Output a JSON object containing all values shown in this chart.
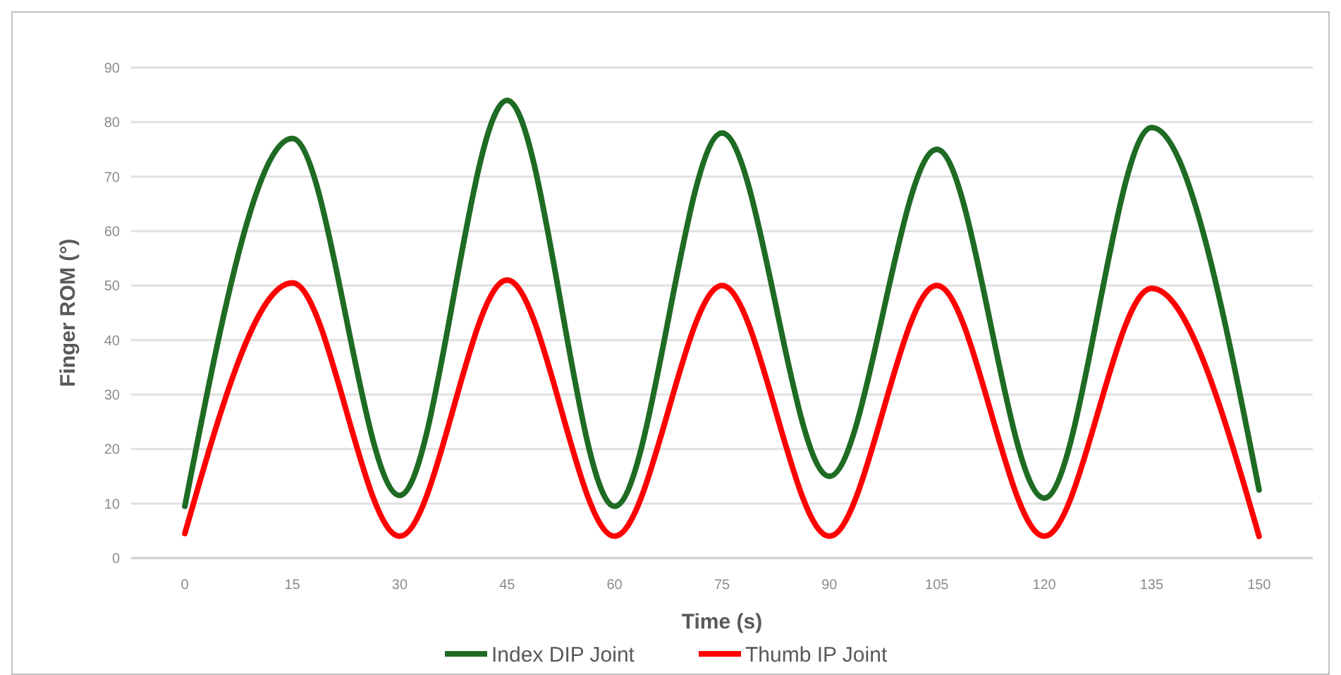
{
  "chart_data": {
    "type": "line",
    "xlabel": "Time (s)",
    "ylabel": "Finger ROM (°)",
    "categories": [
      "0",
      "15",
      "30",
      "45",
      "60",
      "75",
      "90",
      "105",
      "120",
      "135",
      "150"
    ],
    "series": [
      {
        "name": "Index DIP Joint",
        "color": "#1e6b23",
        "values": [
          9.5,
          77,
          11.5,
          84,
          9.5,
          78,
          15,
          75,
          11,
          79,
          12.5
        ]
      },
      {
        "name": "Thumb IP Joint",
        "color": "#ff0000",
        "values": [
          4.5,
          50.5,
          4,
          51,
          4,
          50,
          4,
          50,
          4,
          49.5,
          4
        ]
      }
    ],
    "ylim": [
      0,
      90
    ],
    "yticks": [
      0,
      10,
      20,
      30,
      40,
      50,
      60,
      70,
      80,
      90
    ],
    "grid": "y",
    "legend": "bottom",
    "marker": "none",
    "line_style": "solid"
  }
}
